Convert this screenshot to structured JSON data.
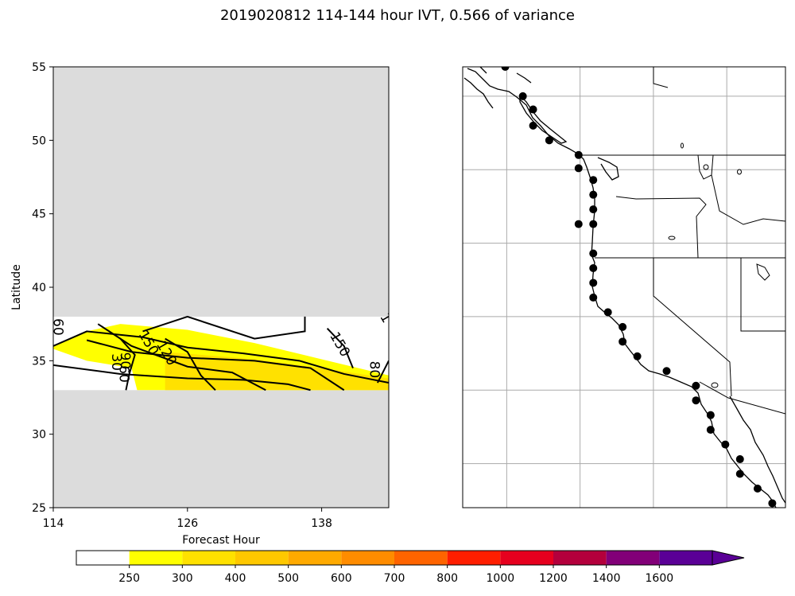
{
  "figure": {
    "title": "2019020812 114-144 hour IVT, 0.566 of variance"
  },
  "colors": {
    "missing": "#dcdcdc",
    "contour": "#000000"
  },
  "chart_data": [
    {
      "type": "heatmap",
      "title": "",
      "xlabel": "Forecast Hour",
      "ylabel": "Latitude",
      "xlim": [
        114,
        144
      ],
      "ylim": [
        25,
        55
      ],
      "xticks": [
        114,
        126,
        138
      ],
      "yticks": [
        25,
        30,
        35,
        40,
        45,
        50,
        55
      ],
      "data_lat_range": [
        33,
        38
      ],
      "filled_regions": [
        {
          "level": "250-300",
          "color": "#ffff00",
          "points": [
            [
              114,
              36
            ],
            [
              117,
              37
            ],
            [
              120,
              37.5
            ],
            [
              126,
              37.1
            ],
            [
              132,
              36.2
            ],
            [
              138,
              35.1
            ],
            [
              144,
              34.0
            ],
            [
              144,
              33
            ],
            [
              121.5,
              33
            ],
            [
              121,
              34.5
            ],
            [
              117,
              35
            ],
            [
              114,
              35.8
            ]
          ]
        },
        {
          "level": "300-400",
          "color": "#ffe100",
          "points": [
            [
              124,
              35.6
            ],
            [
              132,
              35.1
            ],
            [
              138,
              34.5
            ],
            [
              144,
              33.8
            ],
            [
              144,
              33
            ],
            [
              124,
              33
            ]
          ]
        }
      ],
      "contours": [
        {
          "points": [
            [
              114,
              36.0
            ],
            [
              117,
              37.0
            ],
            [
              122,
              36.6
            ],
            [
              126,
              35.9
            ],
            [
              131,
              35.5
            ],
            [
              136,
              35.0
            ],
            [
              140,
              34.1
            ],
            [
              144,
              33.5
            ]
          ]
        },
        {
          "points": [
            [
              117,
              36.4
            ],
            [
              121,
              35.6
            ],
            [
              126,
              35.2
            ],
            [
              132,
              35.0
            ],
            [
              137,
              34.5
            ],
            [
              140,
              33.0
            ]
          ]
        },
        {
          "points": [
            [
              114,
              34.7
            ],
            [
              120,
              34.1
            ],
            [
              126,
              33.8
            ],
            [
              131,
              33.7
            ],
            [
              135,
              33.4
            ],
            [
              137,
              33.0
            ]
          ]
        },
        {
          "points": [
            [
              118,
              37.5
            ],
            [
              121,
              36.0
            ],
            [
              126,
              34.6
            ],
            [
              130,
              34.2
            ],
            [
              133,
              33.0
            ]
          ]
        },
        {
          "points": [
            [
              120,
              36.5
            ],
            [
              121.3,
              35.4
            ],
            [
              120.8,
              34.1
            ],
            [
              120.5,
              33.0
            ]
          ]
        },
        {
          "points": [
            [
              124,
              36.5
            ],
            [
              126,
              35.6
            ],
            [
              127.2,
              34.0
            ],
            [
              128.5,
              33.0
            ]
          ]
        },
        {
          "points": [
            [
              122,
              37.0
            ],
            [
              126,
              38.0
            ],
            [
              132,
              36.5
            ],
            [
              136.5,
              37.0
            ],
            [
              136.5,
              38.0
            ]
          ]
        },
        {
          "points": [
            [
              138.5,
              37.2
            ],
            [
              140,
              36.0
            ],
            [
              140.8,
              34.5
            ]
          ]
        },
        {
          "points": [
            [
              144,
              35.0
            ],
            [
              143,
              33.5
            ]
          ]
        }
      ],
      "contour_labels": [
        {
          "text": "60",
          "x": 114.4,
          "y": 37.3,
          "rotate": 90
        },
        {
          "text": "150",
          "x": 122.5,
          "y": 36.2,
          "rotate": 60
        },
        {
          "text": "120",
          "x": 124.1,
          "y": 35.5,
          "rotate": 60
        },
        {
          "text": "90",
          "x": 120.4,
          "y": 35.0,
          "rotate": 90
        },
        {
          "text": "60",
          "x": 120.3,
          "y": 34.1,
          "rotate": 90
        },
        {
          "text": "30",
          "x": 119.6,
          "y": 34.9,
          "rotate": 90
        },
        {
          "text": "150",
          "x": 139.6,
          "y": 36.1,
          "rotate": 60
        },
        {
          "text": "80",
          "x": 142.7,
          "y": 34.4,
          "rotate": 90
        },
        {
          "text": "1",
          "x": 143.7,
          "y": 37.9,
          "rotate": 60
        }
      ]
    },
    {
      "type": "scatter",
      "title": "",
      "xlabel": "",
      "ylabel": "",
      "xlim": [
        -129,
        -107
      ],
      "ylim": [
        20,
        50
      ],
      "gridlines_lon": [
        -126,
        -121,
        -116,
        -111
      ],
      "gridlines_lat": [
        23,
        28,
        33,
        38,
        43,
        48
      ],
      "x": [
        -126.1,
        -124.9,
        -124.2,
        -124.2,
        -123.1,
        -121.1,
        -121.1,
        -120.1,
        -120.1,
        -120.1,
        -120.1,
        -121.1,
        -120.1,
        -120.1,
        -120.1,
        -120.1,
        -119.1,
        -118.1,
        -118.1,
        -117.1,
        -115.1,
        -113.1,
        -113.1,
        -112.1,
        -112.1,
        -111.1,
        -110.1,
        -110.1,
        -108.9,
        -107.9
      ],
      "y": [
        50.0,
        48.0,
        47.1,
        46.0,
        45.0,
        44.0,
        43.1,
        42.3,
        41.3,
        40.3,
        39.3,
        39.3,
        37.3,
        36.3,
        35.3,
        34.3,
        33.3,
        32.3,
        31.3,
        30.3,
        29.3,
        28.3,
        27.3,
        26.3,
        25.3,
        24.3,
        23.3,
        22.3,
        21.3,
        20.3
      ]
    }
  ],
  "colorbar": {
    "ticks": [
      "250",
      "300",
      "400",
      "500",
      "600",
      "700",
      "800",
      "1000",
      "1200",
      "1400",
      "1600"
    ],
    "colors": [
      "#ffffff",
      "#ffff00",
      "#ffe100",
      "#ffc800",
      "#ffaa00",
      "#ff8c00",
      "#ff6400",
      "#ff1e00",
      "#e6001e",
      "#b4003c",
      "#820078",
      "#5a0096"
    ],
    "extend_color": "#5a0096"
  }
}
